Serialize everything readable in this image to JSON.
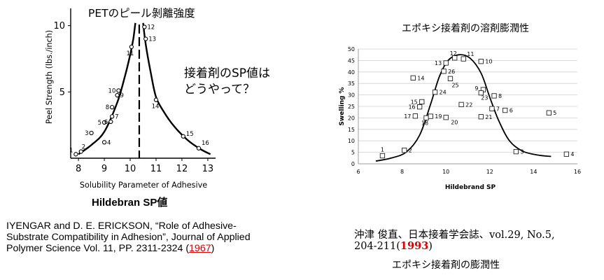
{
  "left_chart_title": "PETのピール剝離強度",
  "left_question": [
    "接着剤のSP値は",
    "どうやって？"
  ],
  "left_caption_bold": "Hildebran SP値",
  "left_citation": {
    "line1": "IYENGAR and D. E. ERICKSON, “Role of Adhesive-",
    "line2": "Substrate Compatibility in Adhesion”, Journal of Applied",
    "line3_pre": "Polymer Science Vol. 11, PP. 2311-2324 (",
    "line3_year": "1967",
    "line3_post": ")"
  },
  "right_chart_title": "エポキシ接着剤の溶剤膨潤性",
  "right_citation": {
    "line1": "沖津 俊直、日本接着学会誌、vol.29, No.5,",
    "line2_pre": "204-211(",
    "line2_year": "1993",
    "line2_post": ")",
    "line3": "エポキシ接着剤の膨潤性"
  },
  "colors": {
    "accent_red": "#d80000",
    "grid": "#d0d0d0",
    "line": "#000000"
  },
  "chart_data": [
    {
      "type": "scatter",
      "title": "PETのピール剝離強度",
      "xlabel": "Solubility Parameter of Adhesive",
      "ylabel": "Peel Strength (lbs./inch)",
      "xlim": [
        7.7,
        13.3
      ],
      "ylim": [
        0,
        11.3
      ],
      "xticks": [
        8,
        9,
        10,
        11,
        12,
        13
      ],
      "yticks": [
        5,
        10
      ],
      "grid": false,
      "divider_x": 10.35,
      "points": [
        {
          "label": "1",
          "x": 7.9,
          "y": 0.3
        },
        {
          "label": "2",
          "x": 8.1,
          "y": 0.5
        },
        {
          "label": "3",
          "x": 8.5,
          "y": 1.9
        },
        {
          "label": "4",
          "x": 9.0,
          "y": 1.2
        },
        {
          "label": "5",
          "x": 9.0,
          "y": 2.7
        },
        {
          "label": "6",
          "x": 9.25,
          "y": 2.75
        },
        {
          "label": "7",
          "x": 9.3,
          "y": 3.15
        },
        {
          "label": "8",
          "x": 9.3,
          "y": 3.85
        },
        {
          "label": "9",
          "x": 9.5,
          "y": 4.75
        },
        {
          "label": "10",
          "x": 9.55,
          "y": 5.1
        },
        {
          "label": "11",
          "x": 10.05,
          "y": 8.4
        },
        {
          "label": "12",
          "x": 10.55,
          "y": 9.9
        },
        {
          "label": "13",
          "x": 10.6,
          "y": 9.0
        },
        {
          "label": "14",
          "x": 11.0,
          "y": 4.4
        },
        {
          "label": "15",
          "x": 12.05,
          "y": 1.65
        },
        {
          "label": "16",
          "x": 12.65,
          "y": 0.75
        }
      ],
      "curve_left": [
        [
          8.0,
          0.3
        ],
        [
          8.5,
          1.0
        ],
        [
          9.0,
          2.0
        ],
        [
          9.5,
          4.2
        ],
        [
          9.8,
          6.2
        ],
        [
          10.0,
          7.8
        ],
        [
          10.12,
          9.0
        ],
        [
          10.2,
          10.2
        ]
      ],
      "curve_right": [
        [
          10.5,
          10.2
        ],
        [
          10.6,
          8.6
        ],
        [
          10.8,
          6.4
        ],
        [
          11.0,
          4.6
        ],
        [
          11.3,
          3.5
        ],
        [
          11.7,
          2.4
        ],
        [
          12.2,
          1.4
        ],
        [
          12.7,
          0.7
        ],
        [
          13.1,
          0.3
        ]
      ]
    },
    {
      "type": "scatter",
      "title": "エポキシ接着剤の溶剤膨潤性",
      "xlabel": "Hildebrand SP",
      "ylabel": "Swelling %",
      "xlim": [
        6,
        16
      ],
      "ylim": [
        0,
        50
      ],
      "xticks": [
        6,
        8,
        10,
        12,
        14,
        16
      ],
      "yticks": [
        0,
        5,
        10,
        15,
        20,
        25,
        30,
        35,
        40,
        45,
        50
      ],
      "grid": true,
      "points": [
        {
          "label": "1",
          "x": 7.1,
          "y": 3.5
        },
        {
          "label": "2",
          "x": 8.1,
          "y": 5.9
        },
        {
          "label": "3",
          "x": 13.2,
          "y": 5.3
        },
        {
          "label": "4",
          "x": 15.5,
          "y": 4.2
        },
        {
          "label": "5",
          "x": 14.7,
          "y": 22.2
        },
        {
          "label": "6",
          "x": 12.7,
          "y": 23.3
        },
        {
          "label": "7",
          "x": 12.1,
          "y": 24.0
        },
        {
          "label": "8",
          "x": 12.2,
          "y": 29.6
        },
        {
          "label": "9",
          "x": 11.7,
          "y": 32.3
        },
        {
          "label": "10",
          "x": 11.6,
          "y": 44.6
        },
        {
          "label": "11",
          "x": 10.8,
          "y": 45.7
        },
        {
          "label": "12",
          "x": 10.4,
          "y": 46.1
        },
        {
          "label": "13",
          "x": 10.0,
          "y": 43.9
        },
        {
          "label": "14",
          "x": 8.5,
          "y": 37.4
        },
        {
          "label": "15",
          "x": 8.9,
          "y": 27.0
        },
        {
          "label": "16",
          "x": 8.8,
          "y": 24.8
        },
        {
          "label": "17",
          "x": 8.6,
          "y": 20.8
        },
        {
          "label": "18",
          "x": 9.1,
          "y": 20.0
        },
        {
          "label": "19",
          "x": 9.3,
          "y": 20.7
        },
        {
          "label": "20",
          "x": 10.0,
          "y": 20.2
        },
        {
          "label": "21",
          "x": 11.6,
          "y": 20.5
        },
        {
          "label": "22",
          "x": 10.7,
          "y": 25.8
        },
        {
          "label": "23",
          "x": 11.6,
          "y": 30.9
        },
        {
          "label": "24",
          "x": 9.5,
          "y": 31.2
        },
        {
          "label": "25",
          "x": 10.2,
          "y": 37.1
        },
        {
          "label": "26",
          "x": 9.9,
          "y": 40.3
        }
      ],
      "curve": [
        [
          6.8,
          1.2
        ],
        [
          7.5,
          2.5
        ],
        [
          8.2,
          5.2
        ],
        [
          8.8,
          12.5
        ],
        [
          9.3,
          26.0
        ],
        [
          9.7,
          38.0
        ],
        [
          10.1,
          45.0
        ],
        [
          10.6,
          47.5
        ],
        [
          11.1,
          46.0
        ],
        [
          11.6,
          39.5
        ],
        [
          12.0,
          29.0
        ],
        [
          12.4,
          19.0
        ],
        [
          12.9,
          10.0
        ],
        [
          13.5,
          5.5
        ],
        [
          14.2,
          3.8
        ],
        [
          14.8,
          3.2
        ]
      ]
    }
  ]
}
